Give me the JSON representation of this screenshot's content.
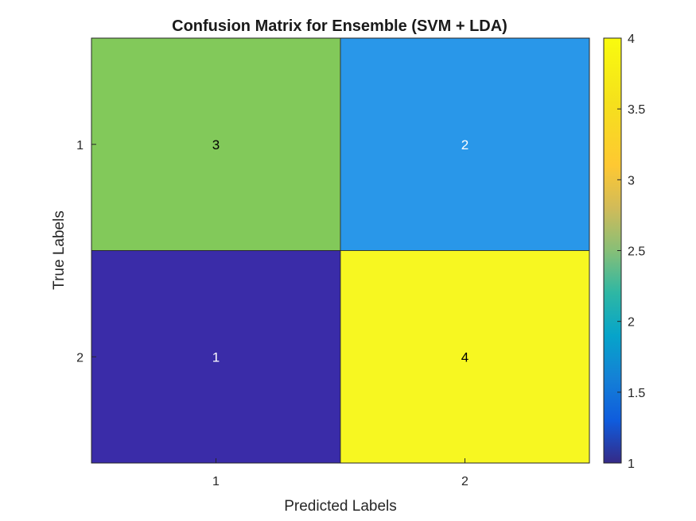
{
  "chart_data": {
    "type": "heatmap",
    "title": "Confusion Matrix for Ensemble (SVM + LDA)",
    "xlabel": "Predicted Labels",
    "ylabel": "True Labels",
    "x_categories": [
      "1",
      "2"
    ],
    "y_categories": [
      "1",
      "2"
    ],
    "values": [
      [
        3,
        2
      ],
      [
        1,
        4
      ]
    ],
    "colorbar": {
      "min": 1,
      "max": 4,
      "ticks": [
        1,
        1.5,
        2,
        2.5,
        3,
        3.5,
        4
      ],
      "tick_labels": [
        "1",
        "1.5",
        "2",
        "2.5",
        "3",
        "3.5",
        "4"
      ],
      "colormap": "parula"
    },
    "cell_colors": [
      [
        "#82c95a",
        "#2997e9"
      ],
      [
        "#3a2ca8",
        "#f7f721"
      ]
    ],
    "cell_text_colors": [
      [
        "#000000",
        "#ffffff"
      ],
      [
        "#ffffff",
        "#000000"
      ]
    ],
    "grid": false
  }
}
